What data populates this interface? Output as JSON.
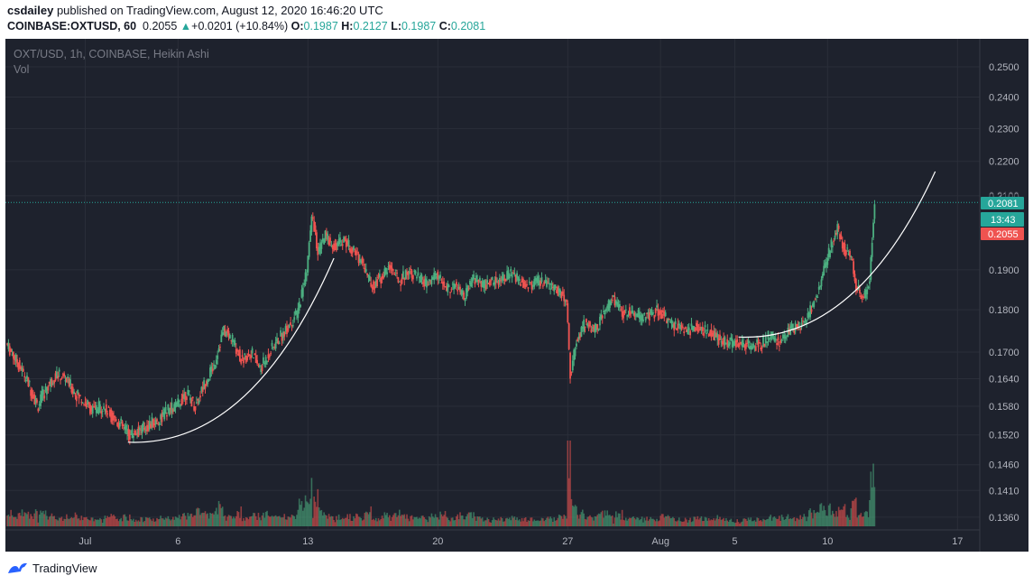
{
  "header": {
    "author": "csdailey",
    "published_text": " published on TradingView.com, August 12, 2020 16:46:20 UTC",
    "symbol": "COINBASE:OXTUSD, 60",
    "last": "0.2055",
    "change": "+0.0201 (+10.84%)",
    "o_label": "O:",
    "o_val": "0.1987",
    "h_label": "H:",
    "h_val": "0.2127",
    "l_label": "L:",
    "l_val": "0.1987",
    "c_label": "C:",
    "c_val": "0.2081"
  },
  "legend": {
    "title": "OXT/USD, 1h, COINBASE, Heikin Ashi",
    "volume": "Vol"
  },
  "badges": {
    "last_price": "0.2081",
    "countdown": "13:43",
    "prev_price": "0.2055",
    "hidden_tick": "0.2100"
  },
  "footer": {
    "brand": "TradingView"
  },
  "colors": {
    "background": "#1e222d",
    "grid": "#2a2e39",
    "up": "#4caf80",
    "down": "#ef5350",
    "axis_text": "#b2b5be",
    "curve": "#ffffff"
  },
  "chart_data": {
    "type": "candlestick",
    "title": "OXT/USD, 1h, COINBASE, Heikin Ashi",
    "y_scale": "log",
    "y_ticks": [
      0.25,
      0.24,
      0.23,
      0.22,
      0.21,
      0.19,
      0.18,
      0.17,
      0.164,
      0.158,
      0.152,
      0.146,
      0.141,
      0.136
    ],
    "y_tick_labels": [
      "0.2500",
      "0.2400",
      "0.2300",
      "0.2200",
      "0.2100",
      "0.1900",
      "0.1800",
      "0.1700",
      "0.1640",
      "0.1580",
      "0.1520",
      "0.1460",
      "0.1410",
      "0.1360"
    ],
    "x_ticks": [
      {
        "label": "Jul",
        "day": 1
      },
      {
        "label": "6",
        "day": 6
      },
      {
        "label": "13",
        "day": 13
      },
      {
        "label": "20",
        "day": 20
      },
      {
        "label": "27",
        "day": 27
      },
      {
        "label": "Aug",
        "day": 32
      },
      {
        "label": "5",
        "day": 36
      },
      {
        "label": "10",
        "day": 41
      },
      {
        "label": "17",
        "day": 48
      }
    ],
    "x_range_days": [
      -3.3,
      49.2
    ],
    "last_close": 0.2081,
    "series": [
      {
        "name": "OXT/USD",
        "points": [
          {
            "day": -3.2,
            "close": 0.172
          },
          {
            "day": -2.5,
            "close": 0.167
          },
          {
            "day": -2,
            "close": 0.163
          },
          {
            "day": -1.5,
            "close": 0.158
          },
          {
            "day": -1,
            "close": 0.162
          },
          {
            "day": -0.5,
            "close": 0.165
          },
          {
            "day": 0,
            "close": 0.164
          },
          {
            "day": 0.5,
            "close": 0.161
          },
          {
            "day": 1,
            "close": 0.159
          },
          {
            "day": 1.5,
            "close": 0.157
          },
          {
            "day": 2,
            "close": 0.158
          },
          {
            "day": 2.5,
            "close": 0.156
          },
          {
            "day": 3,
            "close": 0.154
          },
          {
            "day": 3.5,
            "close": 0.152
          },
          {
            "day": 4,
            "close": 0.153
          },
          {
            "day": 4.5,
            "close": 0.154
          },
          {
            "day": 5,
            "close": 0.155
          },
          {
            "day": 5.5,
            "close": 0.157
          },
          {
            "day": 6,
            "close": 0.158
          },
          {
            "day": 6.5,
            "close": 0.161
          },
          {
            "day": 7,
            "close": 0.158
          },
          {
            "day": 7.5,
            "close": 0.163
          },
          {
            "day": 8,
            "close": 0.167
          },
          {
            "day": 8.5,
            "close": 0.175
          },
          {
            "day": 9,
            "close": 0.173
          },
          {
            "day": 9.5,
            "close": 0.168
          },
          {
            "day": 10,
            "close": 0.17
          },
          {
            "day": 10.5,
            "close": 0.166
          },
          {
            "day": 11,
            "close": 0.17
          },
          {
            "day": 11.5,
            "close": 0.173
          },
          {
            "day": 12,
            "close": 0.176
          },
          {
            "day": 12.5,
            "close": 0.179
          },
          {
            "day": 13,
            "close": 0.19
          },
          {
            "day": 13.3,
            "close": 0.205
          },
          {
            "day": 13.6,
            "close": 0.194
          },
          {
            "day": 14,
            "close": 0.199
          },
          {
            "day": 14.5,
            "close": 0.196
          },
          {
            "day": 15,
            "close": 0.198
          },
          {
            "day": 15.5,
            "close": 0.195
          },
          {
            "day": 16,
            "close": 0.192
          },
          {
            "day": 16.5,
            "close": 0.186
          },
          {
            "day": 17,
            "close": 0.188
          },
          {
            "day": 17.5,
            "close": 0.191
          },
          {
            "day": 18,
            "close": 0.187
          },
          {
            "day": 18.5,
            "close": 0.19
          },
          {
            "day": 19,
            "close": 0.188
          },
          {
            "day": 19.5,
            "close": 0.186
          },
          {
            "day": 20,
            "close": 0.189
          },
          {
            "day": 20.5,
            "close": 0.185
          },
          {
            "day": 21,
            "close": 0.186
          },
          {
            "day": 21.5,
            "close": 0.183
          },
          {
            "day": 22,
            "close": 0.188
          },
          {
            "day": 22.5,
            "close": 0.186
          },
          {
            "day": 23,
            "close": 0.187
          },
          {
            "day": 23.5,
            "close": 0.188
          },
          {
            "day": 24,
            "close": 0.189
          },
          {
            "day": 24.5,
            "close": 0.187
          },
          {
            "day": 25,
            "close": 0.186
          },
          {
            "day": 25.5,
            "close": 0.187
          },
          {
            "day": 26,
            "close": 0.186
          },
          {
            "day": 26.5,
            "close": 0.185
          },
          {
            "day": 27,
            "close": 0.182
          },
          {
            "day": 27.2,
            "close": 0.165
          },
          {
            "day": 27.5,
            "close": 0.172
          },
          {
            "day": 28,
            "close": 0.177
          },
          {
            "day": 28.5,
            "close": 0.175
          },
          {
            "day": 29,
            "close": 0.179
          },
          {
            "day": 29.5,
            "close": 0.183
          },
          {
            "day": 30,
            "close": 0.179
          },
          {
            "day": 30.5,
            "close": 0.18
          },
          {
            "day": 31,
            "close": 0.178
          },
          {
            "day": 31.5,
            "close": 0.179
          },
          {
            "day": 32,
            "close": 0.18
          },
          {
            "day": 32.5,
            "close": 0.177
          },
          {
            "day": 33,
            "close": 0.176
          },
          {
            "day": 33.5,
            "close": 0.175
          },
          {
            "day": 34,
            "close": 0.176
          },
          {
            "day": 34.5,
            "close": 0.175
          },
          {
            "day": 35,
            "close": 0.174
          },
          {
            "day": 35.5,
            "close": 0.172
          },
          {
            "day": 36,
            "close": 0.172
          },
          {
            "day": 36.5,
            "close": 0.172
          },
          {
            "day": 37,
            "close": 0.171
          },
          {
            "day": 37.5,
            "close": 0.172
          },
          {
            "day": 38,
            "close": 0.174
          },
          {
            "day": 38.5,
            "close": 0.172
          },
          {
            "day": 39,
            "close": 0.175
          },
          {
            "day": 39.5,
            "close": 0.176
          },
          {
            "day": 40,
            "close": 0.178
          },
          {
            "day": 40.5,
            "close": 0.184
          },
          {
            "day": 41,
            "close": 0.192
          },
          {
            "day": 41.3,
            "close": 0.197
          },
          {
            "day": 41.6,
            "close": 0.201
          },
          {
            "day": 42,
            "close": 0.195
          },
          {
            "day": 42.3,
            "close": 0.194
          },
          {
            "day": 42.6,
            "close": 0.186
          },
          {
            "day": 43,
            "close": 0.183
          },
          {
            "day": 43.3,
            "close": 0.186
          },
          {
            "day": 43.6,
            "close": 0.2081
          }
        ]
      }
    ],
    "annotations": [
      {
        "type": "arc",
        "from": {
          "day": 3.3,
          "price": 0.1505
        },
        "to": {
          "day": 14.4,
          "price": 0.193
        }
      },
      {
        "type": "arc",
        "from": {
          "day": 36.2,
          "price": 0.1735
        },
        "to": {
          "day": 46.8,
          "price": 0.217
        }
      }
    ]
  }
}
